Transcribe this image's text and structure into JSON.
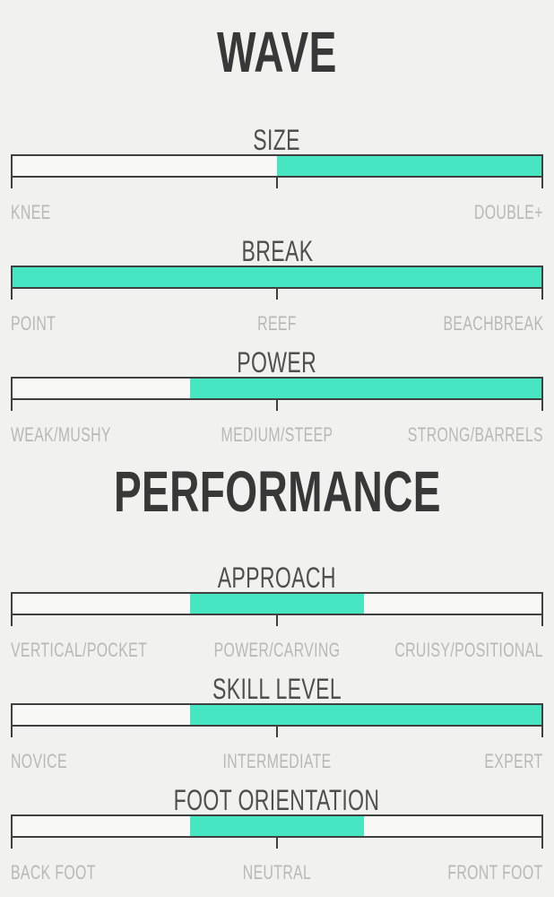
{
  "colors": {
    "background": "#f1f1ef",
    "accent_fill": "#45e6c1",
    "bar_background": "#f8f8f7",
    "bar_border": "#404040",
    "title_text": "#383838",
    "slider_label_text": "#4f4f4f",
    "tick_label_text": "#b8b8b6"
  },
  "chart_data": {
    "type": "bar",
    "subtype": "horizontal-range-indicators",
    "scale_pct": [
      0,
      100
    ],
    "legend": "none",
    "groups": [
      {
        "title": "WAVE",
        "bars": [
          {
            "label": "SIZE",
            "range_pct": [
              50,
              100
            ],
            "tick_positions_pct": [
              0,
              50,
              100
            ],
            "tick_labels": [
              "KNEE",
              "",
              "DOUBLE+"
            ]
          },
          {
            "label": "BREAK",
            "range_pct": [
              0,
              100
            ],
            "tick_positions_pct": [
              0,
              50,
              100
            ],
            "tick_labels": [
              "POINT",
              "REEF",
              "BEACHBREAK"
            ]
          },
          {
            "label": "POWER",
            "range_pct": [
              33.5,
              100
            ],
            "tick_positions_pct": [
              0,
              50,
              100
            ],
            "tick_labels": [
              "WEAK/MUSHY",
              "MEDIUM/STEEP",
              "STRONG/BARRELS"
            ]
          }
        ]
      },
      {
        "title": "PERFORMANCE",
        "bars": [
          {
            "label": "APPROACH",
            "range_pct": [
              33.5,
              66.5
            ],
            "tick_positions_pct": [
              0,
              50,
              100
            ],
            "tick_labels": [
              "VERTICAL/POCKET",
              "POWER/CARVING",
              "CRUISY/POSITIONAL"
            ]
          },
          {
            "label": "SKILL LEVEL",
            "range_pct": [
              33.5,
              100
            ],
            "tick_positions_pct": [
              0,
              50,
              100
            ],
            "tick_labels": [
              "NOVICE",
              "INTERMEDIATE",
              "EXPERT"
            ]
          },
          {
            "label": "FOOT ORIENTATION",
            "range_pct": [
              33.5,
              66.5
            ],
            "tick_positions_pct": [
              0,
              50,
              100
            ],
            "tick_labels": [
              "BACK FOOT",
              "NEUTRAL",
              "FRONT FOOT"
            ]
          }
        ]
      }
    ]
  }
}
